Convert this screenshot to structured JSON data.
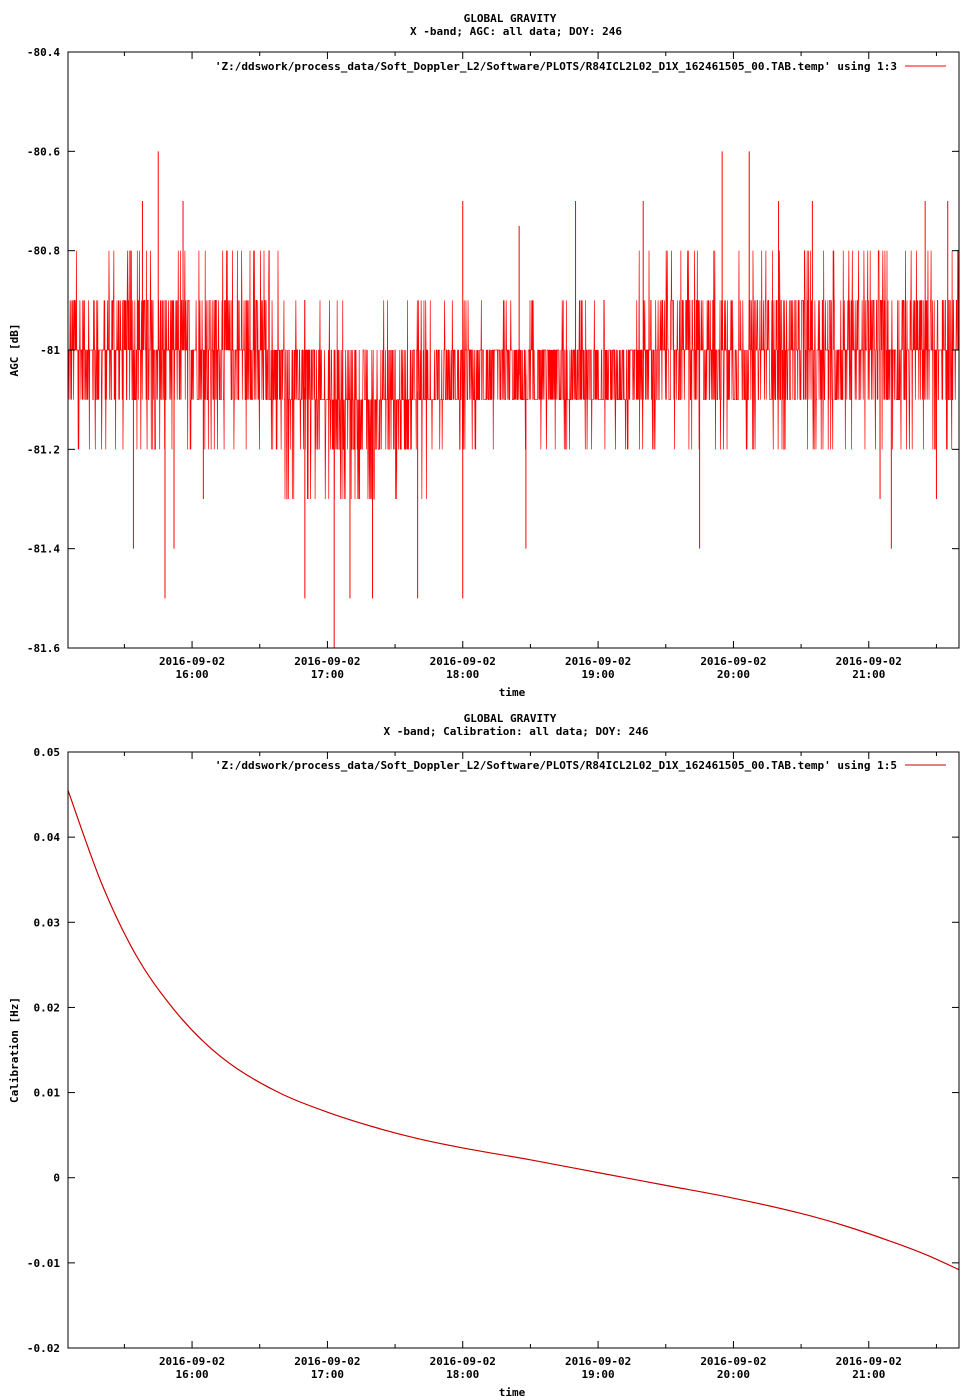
{
  "chart_data": [
    {
      "type": "line",
      "title": "GLOBAL GRAVITY",
      "subtitle": "X -band; AGC: all data; DOY: 246",
      "xlabel": "time",
      "ylabel": "AGC [dB]",
      "ylim": [
        -81.6,
        -80.4
      ],
      "xlim": [
        "2016-09-02 15:05",
        "2016-09-02 21:40"
      ],
      "y_ticks": [
        {
          "value": -80.4,
          "label": "-80.4"
        },
        {
          "value": -80.6,
          "label": "-80.6"
        },
        {
          "value": -80.8,
          "label": "-80.8"
        },
        {
          "value": -81.0,
          "label": "-81"
        },
        {
          "value": -81.2,
          "label": "-81.2"
        },
        {
          "value": -81.4,
          "label": "-81.4"
        },
        {
          "value": -81.6,
          "label": "-81.6"
        }
      ],
      "x_ticks": [
        {
          "value": "2016-09-02 16:00",
          "date": "2016-09-02",
          "time": "16:00"
        },
        {
          "value": "2016-09-02 17:00",
          "date": "2016-09-02",
          "time": "17:00"
        },
        {
          "value": "2016-09-02 18:00",
          "date": "2016-09-02",
          "time": "18:00"
        },
        {
          "value": "2016-09-02 19:00",
          "date": "2016-09-02",
          "time": "19:00"
        },
        {
          "value": "2016-09-02 20:00",
          "date": "2016-09-02",
          "time": "20:00"
        },
        {
          "value": "2016-09-02 21:00",
          "date": "2016-09-02",
          "time": "21:00"
        }
      ],
      "legend": "top-right",
      "grid": false,
      "series": [
        {
          "name": "'Z:/ddswork/process_data/Soft_Doppler_L2/Software/PLOTS/R84ICL2L02_D1X_162461505_00.TAB.temp' using 1:3",
          "color": "#ff0000",
          "x": [
            "2016-09-02 15:05",
            "2016-09-02 15:40",
            "2016-09-02 16:20",
            "2016-09-02 17:00",
            "2016-09-02 17:30",
            "2016-09-02 18:00",
            "2016-09-02 18:30",
            "2016-09-02 19:00",
            "2016-09-02 19:30",
            "2016-09-02 20:00",
            "2016-09-02 20:30",
            "2016-09-02 21:00",
            "2016-09-02 21:40"
          ],
          "values": [
            -81.05,
            -81.02,
            -81.05,
            -81.12,
            -81.1,
            -81.05,
            -81.05,
            -81.05,
            -81.02,
            -81.0,
            -80.97,
            -80.98,
            -80.98
          ],
          "band_min": [
            -81.1,
            -81.1,
            -81.1,
            -81.2,
            -81.2,
            -81.1,
            -81.1,
            -81.1,
            -81.1,
            -81.1,
            -81.1,
            -81.1,
            -81.1
          ],
          "band_max": [
            -80.9,
            -80.9,
            -80.9,
            -81.0,
            -81.0,
            -81.0,
            -81.0,
            -81.0,
            -80.9,
            -80.9,
            -80.9,
            -80.9,
            -80.9
          ],
          "spikes": [
            {
              "x": "2016-09-02 15:34",
              "y": -81.4
            },
            {
              "x": "2016-09-02 15:38",
              "y": -80.7
            },
            {
              "x": "2016-09-02 15:45",
              "y": -80.6
            },
            {
              "x": "2016-09-02 15:48",
              "y": -81.5
            },
            {
              "x": "2016-09-02 15:52",
              "y": -81.4
            },
            {
              "x": "2016-09-02 15:56",
              "y": -80.7
            },
            {
              "x": "2016-09-02 16:05",
              "y": -81.3
            },
            {
              "x": "2016-09-02 16:50",
              "y": -81.5
            },
            {
              "x": "2016-09-02 17:03",
              "y": -81.6
            },
            {
              "x": "2016-09-02 17:10",
              "y": -81.5
            },
            {
              "x": "2016-09-02 17:20",
              "y": -81.5
            },
            {
              "x": "2016-09-02 17:40",
              "y": -81.5
            },
            {
              "x": "2016-09-02 18:00",
              "y": -80.7
            },
            {
              "x": "2016-09-02 18:00",
              "y": -81.5
            },
            {
              "x": "2016-09-02 18:25",
              "y": -80.75
            },
            {
              "x": "2016-09-02 18:28",
              "y": -81.4
            },
            {
              "x": "2016-09-02 18:50",
              "y": -80.7
            },
            {
              "x": "2016-09-02 19:20",
              "y": -80.7
            },
            {
              "x": "2016-09-02 19:45",
              "y": -81.4
            },
            {
              "x": "2016-09-02 19:55",
              "y": -80.6
            },
            {
              "x": "2016-09-02 20:07",
              "y": -80.6
            },
            {
              "x": "2016-09-02 20:20",
              "y": -80.7
            },
            {
              "x": "2016-09-02 20:35",
              "y": -80.7
            },
            {
              "x": "2016-09-02 21:05",
              "y": -81.3
            },
            {
              "x": "2016-09-02 21:10",
              "y": -81.4
            },
            {
              "x": "2016-09-02 21:25",
              "y": -80.7
            },
            {
              "x": "2016-09-02 21:30",
              "y": -81.3
            },
            {
              "x": "2016-09-02 21:35",
              "y": -80.7
            }
          ]
        }
      ]
    },
    {
      "type": "line",
      "title": "GLOBAL GRAVITY",
      "subtitle": "X -band; Calibration: all data; DOY: 246",
      "xlabel": "time",
      "ylabel": "Calibration [Hz]",
      "ylim": [
        -0.02,
        0.05
      ],
      "xlim": [
        "2016-09-02 15:05",
        "2016-09-02 21:40"
      ],
      "y_ticks": [
        {
          "value": 0.05,
          "label": "0.05"
        },
        {
          "value": 0.04,
          "label": "0.04"
        },
        {
          "value": 0.03,
          "label": "0.03"
        },
        {
          "value": 0.02,
          "label": "0.02"
        },
        {
          "value": 0.01,
          "label": "0.01"
        },
        {
          "value": 0.0,
          "label": "0"
        },
        {
          "value": -0.01,
          "label": "-0.01"
        },
        {
          "value": -0.02,
          "label": "-0.02"
        }
      ],
      "x_ticks": [
        {
          "value": "2016-09-02 16:00",
          "date": "2016-09-02",
          "time": "16:00"
        },
        {
          "value": "2016-09-02 17:00",
          "date": "2016-09-02",
          "time": "17:00"
        },
        {
          "value": "2016-09-02 18:00",
          "date": "2016-09-02",
          "time": "18:00"
        },
        {
          "value": "2016-09-02 19:00",
          "date": "2016-09-02",
          "time": "19:00"
        },
        {
          "value": "2016-09-02 20:00",
          "date": "2016-09-02",
          "time": "20:00"
        },
        {
          "value": "2016-09-02 21:00",
          "date": "2016-09-02",
          "time": "21:00"
        }
      ],
      "legend": "top-right",
      "grid": false,
      "series": [
        {
          "name": "'Z:/ddswork/process_data/Soft_Doppler_L2/Software/PLOTS/R84ICL2L02_D1X_162461505_00.TAB.temp' using 1:5",
          "color": "#cc0000",
          "x": [
            "2016-09-02 15:05",
            "2016-09-02 15:20",
            "2016-09-02 15:35",
            "2016-09-02 15:50",
            "2016-09-02 16:05",
            "2016-09-02 16:20",
            "2016-09-02 16:40",
            "2016-09-02 17:00",
            "2016-09-02 17:20",
            "2016-09-02 17:40",
            "2016-09-02 18:00",
            "2016-09-02 18:30",
            "2016-09-02 19:00",
            "2016-09-02 19:30",
            "2016-09-02 20:00",
            "2016-09-02 20:30",
            "2016-09-02 20:50",
            "2016-09-02 21:10",
            "2016-09-02 21:25",
            "2016-09-02 21:40"
          ],
          "values": [
            0.0455,
            0.0345,
            0.0262,
            0.0204,
            0.016,
            0.0128,
            0.0098,
            0.0077,
            0.006,
            0.0046,
            0.0035,
            0.0021,
            0.0006,
            -0.0009,
            -0.0024,
            -0.0042,
            -0.0057,
            -0.0075,
            -0.009,
            -0.0108
          ]
        }
      ]
    }
  ]
}
